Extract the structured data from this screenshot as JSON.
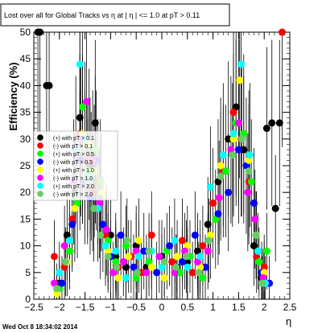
{
  "title": "Lost over all for Global Tracks vs   η at |  η | <= 1.0 at pT > 0.11",
  "timestamp": "Wed Oct  8 18:34:02 2014",
  "chart_data": {
    "type": "scatter",
    "xlabel": "η",
    "ylabel": "Efficiency (%)",
    "xlim": [
      -2.5,
      2.5
    ],
    "ylim": [
      0,
      50
    ],
    "xticks": [
      -2.5,
      -2,
      -1.5,
      -1,
      -0.5,
      0,
      0.5,
      1,
      1.5,
      2,
      2.5
    ],
    "yticks": [
      0,
      5,
      10,
      15,
      20,
      25,
      30,
      35,
      40,
      45,
      50
    ],
    "xtick_labels": [
      "−2.5",
      "−2",
      "−1.5",
      "−1",
      "−0.5",
      "0",
      "0.5",
      "1",
      "1.5",
      "2",
      "2.5"
    ],
    "ytick_labels": [
      "0",
      "5",
      "10",
      "15",
      "20",
      "25",
      "30",
      "35",
      "40",
      "45",
      "50"
    ],
    "grid": false,
    "legend_position": "left-middle",
    "series": [
      {
        "name": "(+) with pT > 0.1",
        "color": "#000000",
        "points": [
          [
            -2.42,
            50
          ],
          [
            -2.38,
            50
          ],
          [
            -2.25,
            40
          ],
          [
            -2.2,
            40
          ],
          [
            -2.0,
            3
          ],
          [
            -1.85,
            12
          ],
          [
            -1.7,
            20
          ],
          [
            -1.6,
            34
          ],
          [
            -1.55,
            28
          ],
          [
            -1.4,
            25
          ],
          [
            -1.3,
            33
          ],
          [
            -1.2,
            20
          ],
          [
            -1.0,
            12
          ],
          [
            -0.9,
            8
          ],
          [
            -0.7,
            6
          ],
          [
            -0.5,
            10
          ],
          [
            -0.3,
            6
          ],
          [
            0.0,
            8
          ],
          [
            0.3,
            6
          ],
          [
            0.5,
            7
          ],
          [
            0.7,
            9
          ],
          [
            0.9,
            14
          ],
          [
            1.1,
            22
          ],
          [
            1.3,
            30
          ],
          [
            1.45,
            36
          ],
          [
            1.6,
            28
          ],
          [
            1.8,
            10
          ],
          [
            1.95,
            4
          ],
          [
            2.05,
            32
          ],
          [
            2.15,
            33
          ],
          [
            2.22,
            17
          ],
          [
            2.3,
            33
          ]
        ]
      },
      {
        "name": "(-) with pT > 0.1",
        "color": "#ff0000",
        "points": [
          [
            -2.1,
            8
          ],
          [
            -1.9,
            6
          ],
          [
            -1.75,
            15
          ],
          [
            -1.6,
            31
          ],
          [
            -1.5,
            26
          ],
          [
            -1.35,
            20
          ],
          [
            -1.25,
            22
          ],
          [
            -1.1,
            12
          ],
          [
            -0.85,
            6
          ],
          [
            -0.6,
            8
          ],
          [
            -0.4,
            5
          ],
          [
            -0.2,
            12
          ],
          [
            0.2,
            7
          ],
          [
            0.4,
            11
          ],
          [
            0.6,
            5
          ],
          [
            0.8,
            10
          ],
          [
            1.0,
            18
          ],
          [
            1.2,
            24
          ],
          [
            1.4,
            35
          ],
          [
            1.55,
            30
          ],
          [
            1.7,
            22
          ],
          [
            1.85,
            8
          ],
          [
            2.0,
            6
          ],
          [
            2.35,
            50
          ]
        ]
      },
      {
        "name": "(+) with pT > 0.5",
        "color": "#00ff00",
        "points": [
          [
            -2.0,
            2
          ],
          [
            -1.8,
            9
          ],
          [
            -1.65,
            18
          ],
          [
            -1.55,
            36
          ],
          [
            -1.45,
            24
          ],
          [
            -1.3,
            28
          ],
          [
            -1.2,
            22
          ],
          [
            -1.05,
            11
          ],
          [
            -0.9,
            7
          ],
          [
            -0.7,
            10
          ],
          [
            -0.5,
            4
          ],
          [
            -0.25,
            7
          ],
          [
            0.1,
            9
          ],
          [
            0.35,
            5
          ],
          [
            0.55,
            8
          ],
          [
            0.8,
            4
          ],
          [
            1.05,
            15
          ],
          [
            1.25,
            24
          ],
          [
            1.45,
            33
          ],
          [
            1.6,
            31
          ],
          [
            1.75,
            22
          ],
          [
            1.9,
            7
          ],
          [
            2.05,
            9
          ]
        ]
      },
      {
        "name": "(-) with pT > 0.5",
        "color": "#0000ff",
        "points": [
          [
            -1.95,
            3
          ],
          [
            -1.75,
            14
          ],
          [
            -1.6,
            26
          ],
          [
            -1.5,
            22
          ],
          [
            -1.4,
            19
          ],
          [
            -1.28,
            26
          ],
          [
            -1.15,
            14
          ],
          [
            -1.0,
            8
          ],
          [
            -0.8,
            12
          ],
          [
            -0.55,
            6
          ],
          [
            -0.35,
            9
          ],
          [
            -0.1,
            5
          ],
          [
            0.15,
            10
          ],
          [
            0.4,
            7
          ],
          [
            0.65,
            12
          ],
          [
            0.85,
            6
          ],
          [
            1.1,
            16
          ],
          [
            1.3,
            20
          ],
          [
            1.5,
            28
          ],
          [
            1.65,
            25
          ],
          [
            1.8,
            18
          ],
          [
            1.95,
            5
          ],
          [
            2.1,
            3
          ]
        ]
      },
      {
        "name": "(+) with pT > 1.0",
        "color": "#ffff00",
        "points": [
          [
            -2.05,
            1
          ],
          [
            -1.85,
            7
          ],
          [
            -1.7,
            17
          ],
          [
            -1.55,
            31
          ],
          [
            -1.42,
            29
          ],
          [
            -1.32,
            24
          ],
          [
            -1.18,
            20
          ],
          [
            -1.05,
            9
          ],
          [
            -0.85,
            4
          ],
          [
            -0.65,
            8
          ],
          [
            -0.45,
            11
          ],
          [
            -0.2,
            6
          ],
          [
            0.05,
            4
          ],
          [
            0.3,
            8
          ],
          [
            0.5,
            10
          ],
          [
            0.75,
            6
          ],
          [
            0.95,
            12
          ],
          [
            1.15,
            25
          ],
          [
            1.4,
            30
          ],
          [
            1.52,
            41
          ],
          [
            1.7,
            26
          ],
          [
            1.85,
            12
          ],
          [
            2.0,
            5
          ]
        ]
      },
      {
        "name": "(-) with pT > 1.0",
        "color": "#ff00ff",
        "points": [
          [
            -2.1,
            3
          ],
          [
            -1.9,
            10
          ],
          [
            -1.72,
            22
          ],
          [
            -1.58,
            30
          ],
          [
            -1.47,
            37
          ],
          [
            -1.35,
            26
          ],
          [
            -1.22,
            18
          ],
          [
            -1.08,
            13
          ],
          [
            -0.95,
            5
          ],
          [
            -0.75,
            7
          ],
          [
            -0.5,
            9
          ],
          [
            -0.3,
            5
          ],
          [
            -0.05,
            8
          ],
          [
            0.25,
            5
          ],
          [
            0.45,
            9
          ],
          [
            0.7,
            7
          ],
          [
            0.9,
            9
          ],
          [
            1.12,
            19
          ],
          [
            1.35,
            28
          ],
          [
            1.5,
            33
          ],
          [
            1.68,
            20
          ],
          [
            1.82,
            15
          ],
          [
            1.98,
            4
          ]
        ]
      },
      {
        "name": "(+) with pT > 2.0",
        "color": "#00ffff",
        "points": [
          [
            -2.0,
            5
          ],
          [
            -1.8,
            11
          ],
          [
            -1.68,
            28
          ],
          [
            -1.6,
            44
          ],
          [
            -1.5,
            30
          ],
          [
            -1.38,
            23
          ],
          [
            -1.25,
            17
          ],
          [
            -1.1,
            10
          ],
          [
            -0.9,
            9
          ],
          [
            -0.7,
            4
          ],
          [
            -0.45,
            8
          ],
          [
            -0.2,
            9
          ],
          [
            0.0,
            6
          ],
          [
            0.25,
            11
          ],
          [
            0.5,
            6
          ],
          [
            0.75,
            8
          ],
          [
            0.95,
            21
          ],
          [
            1.2,
            27
          ],
          [
            1.4,
            31
          ],
          [
            1.55,
            44
          ],
          [
            1.72,
            27
          ],
          [
            1.88,
            9
          ],
          [
            2.02,
            3
          ]
        ]
      },
      {
        "name": "(-) with pT > 2.0",
        "color": "#66cc66",
        "points": [
          [
            -2.05,
            2
          ],
          [
            -1.88,
            7
          ],
          [
            -1.7,
            19
          ],
          [
            -1.55,
            28
          ],
          [
            -1.45,
            22
          ],
          [
            -1.33,
            17
          ],
          [
            -1.2,
            12
          ],
          [
            -1.05,
            8
          ],
          [
            -0.88,
            6
          ],
          [
            -0.68,
            11
          ],
          [
            -0.48,
            5
          ],
          [
            -0.25,
            9
          ],
          [
            0.05,
            7
          ],
          [
            0.28,
            6
          ],
          [
            0.48,
            8
          ],
          [
            0.72,
            5
          ],
          [
            0.92,
            11
          ],
          [
            1.15,
            23
          ],
          [
            1.38,
            27
          ],
          [
            1.56,
            30
          ],
          [
            1.7,
            24
          ],
          [
            1.84,
            12
          ],
          [
            1.96,
            3
          ]
        ]
      }
    ]
  }
}
